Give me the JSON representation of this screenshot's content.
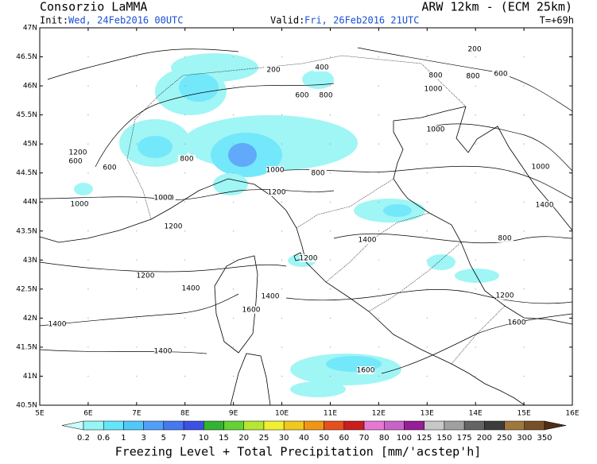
{
  "header": {
    "title": "Consorzio LaMMA",
    "model": "ARW 12km - (ECM 25km)",
    "init_label": "Init:",
    "init_value": "Wed, 24Feb2016 00UTC",
    "valid_label": "Valid:",
    "valid_value": "Fri, 26Feb2016 21UTC",
    "lead_time": "T=+69h"
  },
  "axes": {
    "latitudes": [
      "47N",
      "46.5N",
      "46N",
      "45.5N",
      "45N",
      "44.5N",
      "44N",
      "43.5N",
      "43N",
      "42.5N",
      "42N",
      "41.5N",
      "41N",
      "40.5N"
    ],
    "longitudes": [
      "5E",
      "6E",
      "7E",
      "8E",
      "9E",
      "10E",
      "11E",
      "12E",
      "13E",
      "14E",
      "15E",
      "16E"
    ]
  },
  "contour_labels": [
    "1200",
    "800",
    "600",
    "1000",
    "200",
    "800",
    "600",
    "800",
    "400",
    "600",
    "400",
    "800",
    "600",
    "1000",
    "1000",
    "800",
    "800",
    "1000",
    "800",
    "1000",
    "600",
    "200",
    "1000",
    "1200",
    "1200",
    "1400",
    "1200",
    "1200",
    "1400",
    "1200",
    "1400",
    "1600",
    "1400",
    "1400",
    "1600",
    "1600",
    "1400"
  ],
  "colorbar": {
    "labels": [
      "0.2",
      "0.6",
      "1",
      "3",
      "5",
      "7",
      "10",
      "15",
      "20",
      "25",
      "30",
      "40",
      "50",
      "60",
      "70",
      "80",
      "100",
      "125",
      "150",
      "175",
      "200",
      "250",
      "300",
      "350"
    ],
    "colors": [
      "#c8ffff",
      "#96f5f5",
      "#64e6fa",
      "#50c8fa",
      "#50a0fa",
      "#4678f0",
      "#3c50e6",
      "#32b432",
      "#64d232",
      "#b4e632",
      "#f0f032",
      "#f0c81e",
      "#f09614",
      "#e6501e",
      "#c81e1e",
      "#e678d2",
      "#c864c8",
      "#961e96",
      "#c8c8c8",
      "#a0a0a0",
      "#646464",
      "#3c3c3c",
      "#a0783c",
      "#785028",
      "#502d14"
    ]
  },
  "footer": "Freezing Level + Total Precipitation [mm/'acstep'h]"
}
